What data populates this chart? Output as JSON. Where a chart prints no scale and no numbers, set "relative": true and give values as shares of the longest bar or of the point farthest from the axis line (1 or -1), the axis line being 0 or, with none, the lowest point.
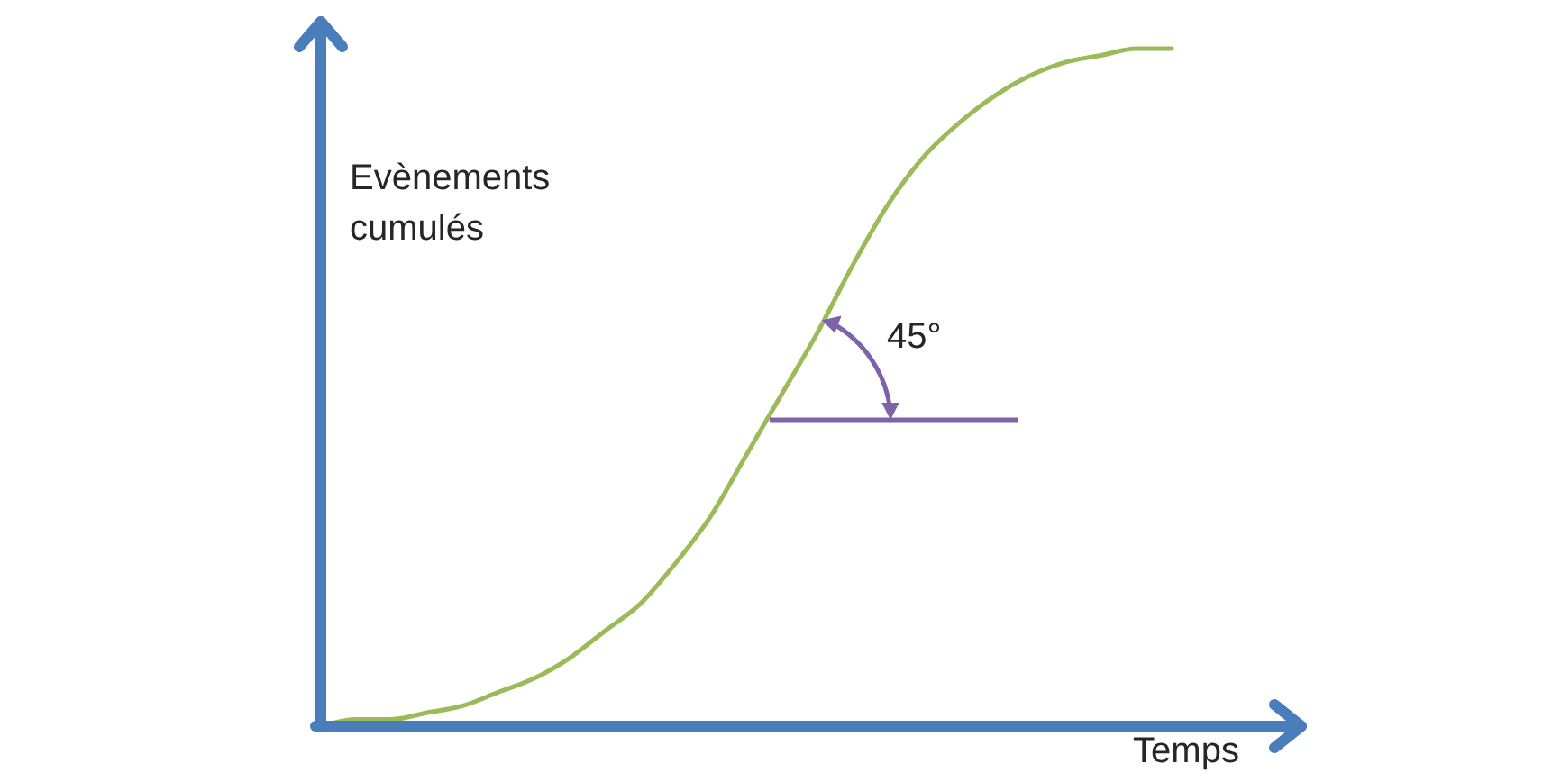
{
  "chart_data": {
    "type": "line",
    "relative": true,
    "xlabel": "Temps",
    "ylabel": "Evènements cumulés",
    "annotations": [
      "45°"
    ],
    "categories": [
      null,
      null,
      null,
      null,
      null,
      null,
      null,
      null,
      null,
      null,
      null,
      null,
      null,
      null,
      null,
      null,
      null,
      null,
      null,
      null,
      null,
      null,
      null,
      null,
      null
    ],
    "series": [
      {
        "color": "#9bbb59",
        "values": [
          0,
          0.01,
          0.01,
          0.02,
          0.03,
          0.05,
          0.07,
          0.1,
          0.14,
          0.18,
          0.24,
          0.31,
          0.4,
          0.49,
          0.58,
          0.68,
          0.77,
          0.84,
          0.89,
          0.93,
          0.96,
          0.98,
          0.99,
          1,
          1
        ]
      }
    ]
  }
}
